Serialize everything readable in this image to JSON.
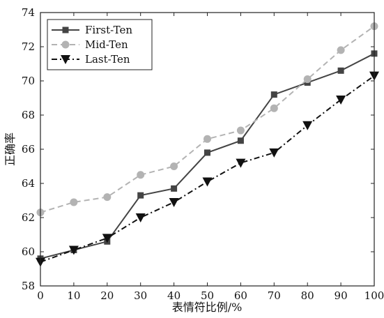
{
  "chart_data": {
    "type": "line",
    "xlabel": "表情符比例/%",
    "ylabel": "正确率",
    "x": [
      0,
      10,
      20,
      30,
      40,
      50,
      60,
      70,
      80,
      90,
      100
    ],
    "xlim": [
      0,
      100
    ],
    "ylim": [
      58,
      74
    ],
    "xticks": [
      0,
      10,
      20,
      30,
      40,
      50,
      60,
      70,
      80,
      90,
      100
    ],
    "yticks": [
      58,
      60,
      62,
      64,
      66,
      68,
      70,
      72,
      74
    ],
    "grid": false,
    "legend_position": "top-left",
    "series": [
      {
        "name": "First-Ten",
        "color": "#444444",
        "line_style": "solid",
        "marker": "square",
        "values": [
          59.6,
          60.1,
          60.6,
          63.3,
          63.7,
          65.8,
          66.5,
          69.2,
          69.9,
          70.6,
          71.6
        ]
      },
      {
        "name": "Mid-Ten",
        "color": "#b3b3b3",
        "line_style": "dashed",
        "marker": "circle",
        "values": [
          62.3,
          62.9,
          63.2,
          64.5,
          65.0,
          66.6,
          67.1,
          68.4,
          70.1,
          71.8,
          73.2
        ]
      },
      {
        "name": "Last-Ten",
        "color": "#111111",
        "line_style": "dash-dot",
        "marker": "triangle-down",
        "values": [
          59.4,
          60.1,
          60.8,
          62.0,
          62.9,
          64.1,
          65.2,
          65.8,
          67.4,
          68.9,
          70.3
        ]
      }
    ]
  }
}
